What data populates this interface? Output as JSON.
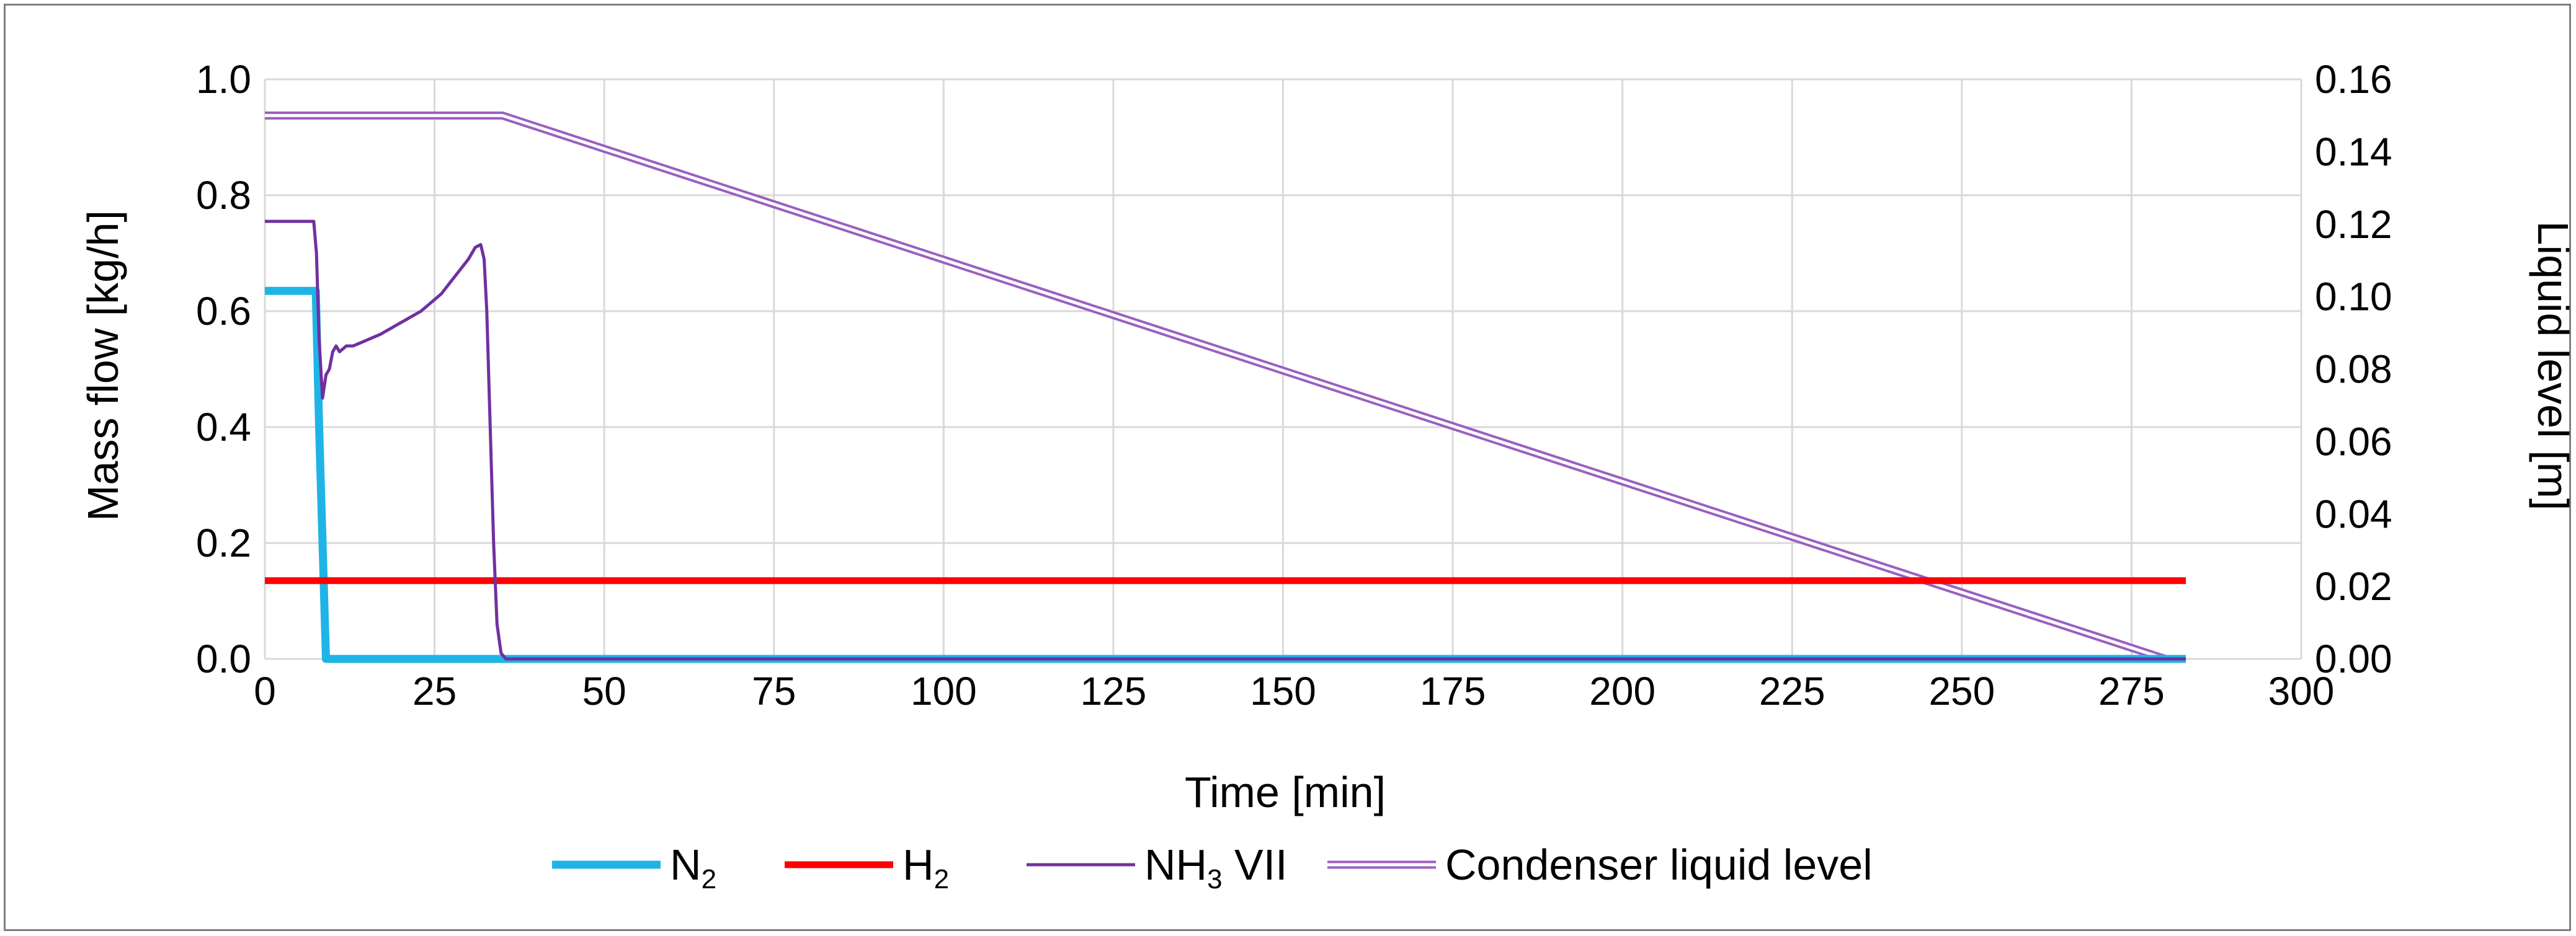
{
  "chart_data": {
    "type": "line",
    "title": "",
    "xlabel": "Time [min]",
    "ylabel": "Mass flow [kg/h]",
    "y2label": "Liquid level [m]",
    "xlim": [
      0,
      300
    ],
    "ylim": [
      0,
      1.0
    ],
    "y2lim": [
      0,
      0.16
    ],
    "x_ticks": [
      "0",
      "25",
      "50",
      "75",
      "100",
      "125",
      "150",
      "175",
      "200",
      "225",
      "250",
      "275",
      "300"
    ],
    "y_ticks": [
      "0.0",
      "0.2",
      "0.4",
      "0.6",
      "0.8",
      "1.0"
    ],
    "y2_ticks": [
      "0.00",
      "0.02",
      "0.04",
      "0.06",
      "0.08",
      "0.10",
      "0.12",
      "0.14",
      "0.16"
    ],
    "grid": true,
    "legend_position": "bottom",
    "series": [
      {
        "name": "N2",
        "label_main": "N",
        "label_sub": "2",
        "label_suffix": "",
        "axis": "left",
        "color": "#1fb4e6",
        "style": "thick",
        "x": [
          0,
          7.5,
          8,
          9,
          283
        ],
        "y": [
          0.635,
          0.635,
          0.4,
          0.0,
          0.0
        ]
      },
      {
        "name": "H2",
        "label_main": "H",
        "label_sub": "2",
        "label_suffix": "",
        "axis": "left",
        "color": "#ff0000",
        "style": "medium",
        "x": [
          0,
          283
        ],
        "y": [
          0.135,
          0.135
        ]
      },
      {
        "name": "NH3 VII",
        "label_main": "NH",
        "label_sub": "3",
        "label_suffix": " VII",
        "axis": "left",
        "color": "#7030a0",
        "style": "thin",
        "x": [
          0,
          7.2,
          7.6,
          8,
          8.5,
          9,
          9.5,
          10,
          10.5,
          11,
          12,
          13,
          14,
          15,
          17,
          20,
          23,
          26,
          28,
          30,
          31,
          31.8,
          32.3,
          32.7,
          33.2,
          33.7,
          34.2,
          34.8,
          35.5,
          283
        ],
        "y": [
          0.755,
          0.755,
          0.7,
          0.55,
          0.45,
          0.49,
          0.5,
          0.53,
          0.54,
          0.53,
          0.54,
          0.54,
          0.545,
          0.55,
          0.56,
          0.58,
          0.6,
          0.63,
          0.66,
          0.69,
          0.71,
          0.715,
          0.69,
          0.6,
          0.4,
          0.2,
          0.06,
          0.01,
          0.0,
          0.0
        ]
      },
      {
        "name": "Condenser liquid level",
        "label_main": "Condenser liquid level",
        "label_sub": "",
        "label_suffix": "",
        "axis": "right",
        "color": "#9b5fc0",
        "style": "double",
        "x": [
          0,
          35,
          280,
          283
        ],
        "y": [
          0.15,
          0.15,
          0.0,
          0.0
        ]
      }
    ]
  }
}
